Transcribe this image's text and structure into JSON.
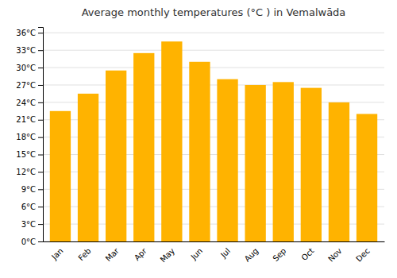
{
  "chart_data": {
    "type": "bar",
    "title": "Average monthly temperatures (°C ) in Vemalwāda",
    "categories": [
      "Jan",
      "Feb",
      "Mar",
      "Apr",
      "May",
      "Jun",
      "Jul",
      "Aug",
      "Sep",
      "Oct",
      "Nov",
      "Dec"
    ],
    "values": [
      22.5,
      25.5,
      29.5,
      32.5,
      34.5,
      31.0,
      28.0,
      27.0,
      27.5,
      26.5,
      24.0,
      22.0
    ],
    "color": "#FFB300",
    "ylim": [
      0,
      37
    ],
    "yticks": [
      {
        "value": 0,
        "label": "0°C"
      },
      {
        "value": 3,
        "label": "3°C"
      },
      {
        "value": 6,
        "label": "6°C"
      },
      {
        "value": 9,
        "label": "9°C"
      },
      {
        "value": 12,
        "label": "12°C"
      },
      {
        "value": 15,
        "label": "15°C"
      },
      {
        "value": 18,
        "label": "18°C"
      },
      {
        "value": 21,
        "label": "21°C"
      },
      {
        "value": 24,
        "label": "24°C"
      },
      {
        "value": 27,
        "label": "27°C"
      },
      {
        "value": 30,
        "label": "30°C"
      },
      {
        "value": 33,
        "label": "33°C"
      },
      {
        "value": 36,
        "label": "36°C"
      }
    ],
    "grid": true
  }
}
